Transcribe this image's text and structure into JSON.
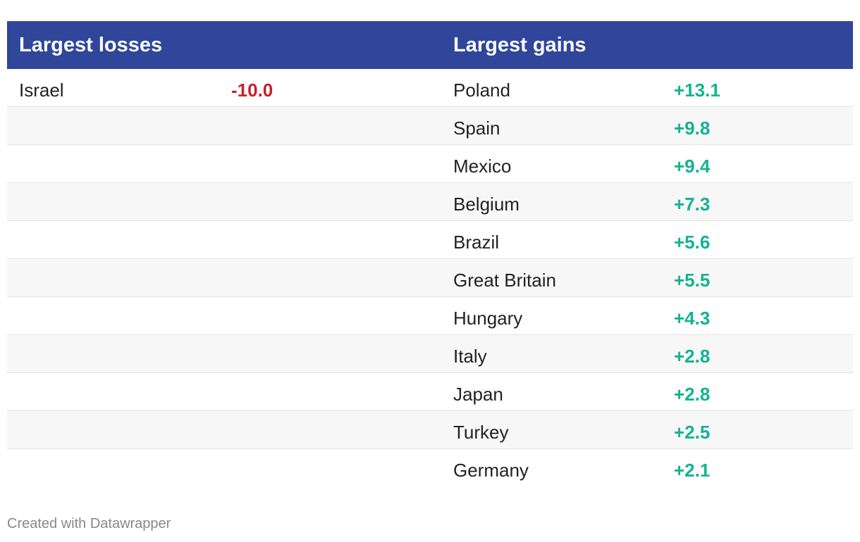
{
  "chart_data": {
    "type": "table",
    "columns": [
      "Largest losses",
      "",
      "Largest gains",
      ""
    ],
    "losses": [
      {
        "country": "Israel",
        "label": "-10.0",
        "value": -10.0
      }
    ],
    "gains": [
      {
        "country": "Poland",
        "label": "+13.1",
        "value": 13.1
      },
      {
        "country": "Spain",
        "label": "+9.8",
        "value": 9.8
      },
      {
        "country": "Mexico",
        "label": "+9.4",
        "value": 9.4
      },
      {
        "country": "Belgium",
        "label": "+7.3",
        "value": 7.3
      },
      {
        "country": "Brazil",
        "label": "+5.6",
        "value": 5.6
      },
      {
        "country": "Great Britain",
        "label": "+5.5",
        "value": 5.5
      },
      {
        "country": "Hungary",
        "label": "+4.3",
        "value": 4.3
      },
      {
        "country": "Italy",
        "label": "+2.8",
        "value": 2.8
      },
      {
        "country": "Japan",
        "label": "+2.8",
        "value": 2.8
      },
      {
        "country": "Turkey",
        "label": "+2.5",
        "value": 2.5
      },
      {
        "country": "Germany",
        "label": "+2.1",
        "value": 2.1
      }
    ]
  },
  "header": {
    "losses_title": "Largest losses",
    "gains_title": "Largest gains"
  },
  "footer": {
    "credit": "Created with Datawrapper"
  },
  "colors": {
    "header_bg": "#30469b",
    "loss": "#c42127",
    "gain": "#14b390"
  }
}
